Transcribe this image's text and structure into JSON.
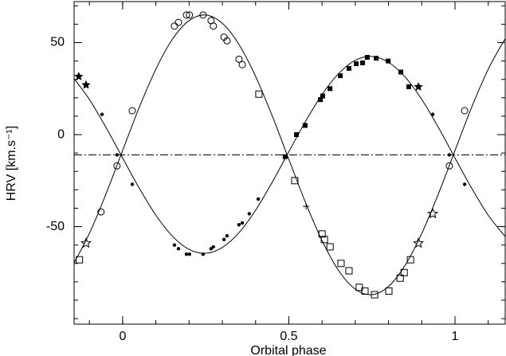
{
  "chart_data": {
    "type": "scatter",
    "xlabel": "Orbital phase",
    "ylabel": "HRV [km.s⁻¹]",
    "xlim": [
      -0.146,
      1.151
    ],
    "ylim": [
      -103,
      72.3
    ],
    "xticks": [
      0,
      0.5,
      1
    ],
    "yticks": [
      -50,
      0,
      50
    ],
    "xminor": 0.1,
    "yminor": 10,
    "hline": -11,
    "hline_style": "dash-dot",
    "series": [
      {
        "marker": "line",
        "color": "#000000",
        "x": [
          -0.15,
          -0.1,
          -0.05,
          0,
          0.05,
          0.1,
          0.15,
          0.2,
          0.25,
          0.3,
          0.35,
          0.4,
          0.45,
          0.5,
          0.55,
          0.6,
          0.65,
          0.7,
          0.75,
          0.8,
          0.85,
          0.9,
          0.95,
          1,
          1.05,
          1.1,
          1.15
        ],
        "values": [
          -71.0,
          -53.7,
          -32.2,
          -8.6,
          14.8,
          35.6,
          51.9,
          62.0,
          65.0,
          60.5,
          49.0,
          31.7,
          10.2,
          -13.4,
          -36.8,
          -57.6,
          -73.9,
          -84.0,
          -87.0,
          -82.5,
          -71.0,
          -53.7,
          -32.2,
          -8.6,
          14.8,
          35.6,
          51.9
        ]
      },
      {
        "marker": "line",
        "color": "#000000",
        "x": [
          -0.15,
          -0.1,
          -0.05,
          0,
          0.05,
          0.1,
          0.15,
          0.2,
          0.25,
          0.3,
          0.35,
          0.4,
          0.45,
          0.5,
          0.55,
          0.6,
          0.65,
          0.7,
          0.75,
          0.8,
          0.85,
          0.9,
          0.95,
          1,
          1.05,
          1.1,
          1.15
        ],
        "values": [
          31.3,
          19.1,
          3.9,
          -12.7,
          -29.1,
          -43.8,
          -55.2,
          -62.4,
          -64.5,
          -61.3,
          -53.3,
          -41.1,
          -25.9,
          -9.3,
          7.1,
          21.8,
          33.2,
          40.4,
          42.5,
          39.3,
          31.3,
          19.1,
          3.9,
          -12.7,
          -29.1,
          -43.8,
          -55.2
        ]
      },
      {
        "marker": "open-circle",
        "color": "#000000",
        "x": [
          -0.065,
          -0.017,
          0.029,
          0.156,
          0.168,
          0.192,
          0.201,
          0.242,
          0.266,
          0.273,
          0.305,
          0.314,
          0.35,
          0.36,
          0.983,
          1.029
        ],
        "values": [
          -42,
          -17,
          13,
          59,
          61,
          65,
          65,
          65,
          62,
          59,
          53,
          51,
          41,
          38,
          -17,
          13
        ]
      },
      {
        "marker": "open-square",
        "color": "#000000",
        "x": [
          -0.13,
          0.41,
          0.518,
          0.6,
          0.607,
          0.624,
          0.657,
          0.681,
          0.712,
          0.729,
          0.758,
          0.801,
          0.835,
          0.847,
          0.866
        ],
        "values": [
          -68,
          22,
          -25,
          -54,
          -57,
          -61,
          -70,
          -74,
          -83,
          -85,
          -87,
          -85,
          -78,
          -75,
          -68
        ]
      },
      {
        "marker": "dot",
        "color": "#000000",
        "x": [
          -0.062,
          -0.017,
          0.029,
          0.156,
          0.168,
          0.192,
          0.201,
          0.242,
          0.266,
          0.273,
          0.305,
          0.314,
          0.35,
          0.36,
          0.381,
          0.408,
          0.933,
          0.983,
          1.029
        ],
        "values": [
          11,
          -11,
          -27,
          -60,
          -62,
          -65,
          -65,
          -65,
          -62,
          -61,
          -57,
          -55,
          -49,
          -48,
          -43,
          -35,
          11,
          -11,
          -27
        ]
      },
      {
        "marker": "filled-square",
        "color": "#000000",
        "x": [
          0.489,
          0.523,
          0.549,
          0.595,
          0.602,
          0.624,
          0.655,
          0.681,
          0.703,
          0.722,
          0.736,
          0.763,
          0.799,
          0.837,
          0.861
        ],
        "values": [
          -12,
          0,
          5,
          19,
          21,
          25,
          32,
          36,
          38.5,
          39,
          42,
          41.5,
          40,
          34,
          26
        ]
      },
      {
        "marker": "filled-star",
        "color": "#000000",
        "x": [
          -0.132,
          -0.11,
          0.89
        ],
        "values": [
          31.6,
          27,
          26
        ]
      },
      {
        "marker": "open-star",
        "color": "#000000",
        "x": [
          -0.11,
          0.89,
          0.933
        ],
        "values": [
          -59,
          -59,
          -43
        ]
      },
      {
        "marker": "plus",
        "color": "#000000",
        "x": [
          0.552
        ],
        "values": [
          -39
        ]
      }
    ]
  }
}
